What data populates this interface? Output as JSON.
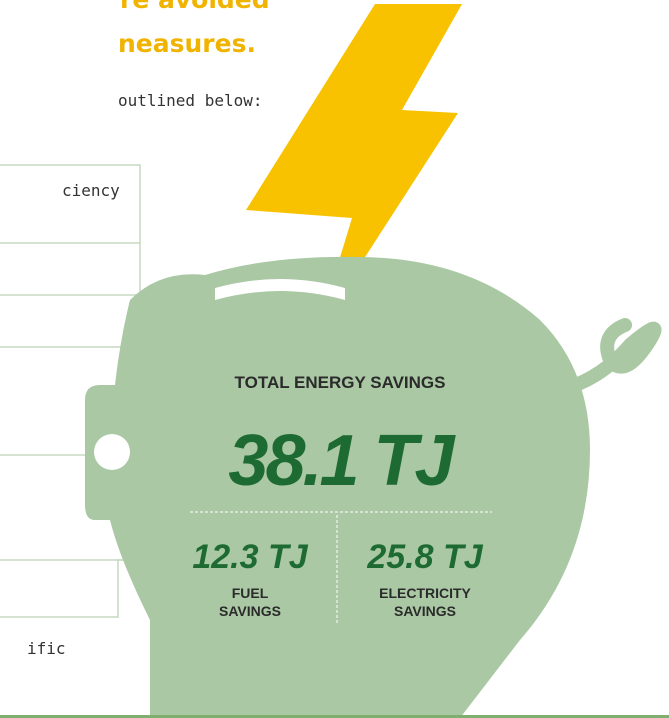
{
  "heading": {
    "lines": [
      "re avoided",
      "neasures."
    ]
  },
  "body": {
    "intro": "outlined below:",
    "table_fragments": [
      "ciency",
      "ific"
    ]
  },
  "infographic": {
    "total_label": "TOTAL ENERGY SAVINGS",
    "total_value": "38.1 TJ",
    "fuel": {
      "value": "12.3 TJ",
      "label_lines": [
        "FUEL",
        "SAVINGS"
      ]
    },
    "electricity": {
      "value": "25.8 TJ",
      "label_lines": [
        "ELECTRICITY",
        "SAVINGS"
      ]
    }
  }
}
